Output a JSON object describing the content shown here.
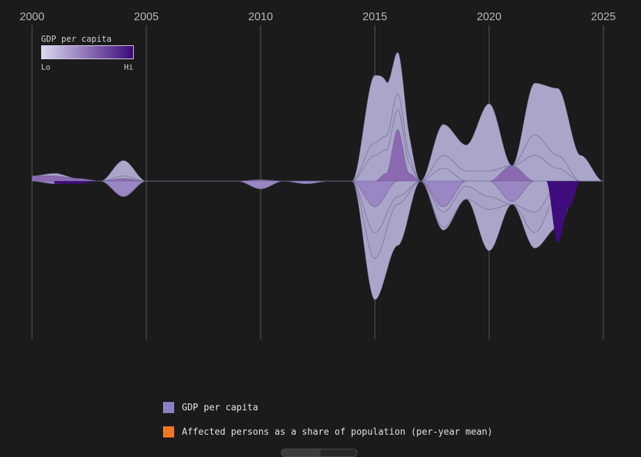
{
  "chart_data": {
    "type": "area",
    "subtype": "streamgraph",
    "x_axis": {
      "ticks": [
        "2000",
        "2005",
        "2010",
        "2015",
        "2020",
        "2025"
      ],
      "range": [
        2000,
        2025
      ],
      "gridlines": true,
      "position": "top"
    },
    "color_scale": {
      "title": "GDP per capita",
      "low_label": "Lo",
      "high_label": "Hi",
      "low_color": "#dcd9ef",
      "high_color": "#3c0a78",
      "placement": "top-left"
    },
    "legend": [
      {
        "label": "GDP per capita",
        "color": "#8a81c4"
      },
      {
        "label": "Affected persons as a share of population (per-year mean)",
        "color": "#f47520"
      }
    ],
    "legend_placement": "bottom",
    "upper_layers": [
      {
        "color": "#8b6ab2",
        "values": [
          [
            2000,
            2
          ],
          [
            2001,
            2
          ],
          [
            2002,
            1
          ],
          [
            2003,
            0
          ],
          [
            2004,
            1
          ],
          [
            2005,
            0
          ],
          [
            2006,
            0
          ],
          [
            2007,
            0
          ],
          [
            2008,
            0
          ],
          [
            2009,
            0
          ],
          [
            2010,
            0.5
          ],
          [
            2011,
            0
          ],
          [
            2012,
            0
          ],
          [
            2013,
            0
          ],
          [
            2014,
            0
          ],
          [
            2015,
            0
          ],
          [
            2015.5,
            3
          ],
          [
            2016,
            20
          ],
          [
            2016.5,
            3
          ],
          [
            2017,
            0
          ],
          [
            2018,
            0
          ],
          [
            2019,
            0
          ],
          [
            2020,
            0
          ],
          [
            2021,
            6
          ],
          [
            2022,
            0
          ],
          [
            2023,
            0
          ],
          [
            2024,
            0
          ],
          [
            2025,
            0
          ]
        ]
      },
      {
        "color": "#aaa6c9",
        "values": [
          [
            2000,
            0
          ],
          [
            2001,
            1
          ],
          [
            2002,
            0
          ],
          [
            2003,
            0
          ],
          [
            2004,
            0
          ],
          [
            2005,
            0
          ],
          [
            2006,
            0
          ],
          [
            2007,
            0
          ],
          [
            2008,
            0
          ],
          [
            2009,
            0
          ],
          [
            2010,
            0
          ],
          [
            2011,
            0
          ],
          [
            2012,
            0
          ],
          [
            2013,
            0
          ],
          [
            2014,
            0
          ],
          [
            2015,
            10
          ],
          [
            2016,
            8
          ],
          [
            2017,
            0
          ],
          [
            2018,
            5
          ],
          [
            2019,
            0
          ],
          [
            2020,
            0
          ],
          [
            2021,
            0
          ],
          [
            2022,
            10
          ],
          [
            2023,
            5
          ],
          [
            2024,
            0
          ],
          [
            2025,
            0
          ]
        ]
      },
      {
        "color": "#aaa6c9",
        "values": [
          [
            2000,
            0
          ],
          [
            2001,
            0
          ],
          [
            2002,
            0
          ],
          [
            2003,
            0
          ],
          [
            2004,
            1
          ],
          [
            2005,
            0
          ],
          [
            2006,
            0
          ],
          [
            2007,
            0
          ],
          [
            2008,
            0
          ],
          [
            2009,
            0
          ],
          [
            2010,
            0
          ],
          [
            2011,
            0
          ],
          [
            2012,
            0
          ],
          [
            2013,
            0
          ],
          [
            2014,
            0
          ],
          [
            2015,
            5
          ],
          [
            2016,
            6
          ],
          [
            2017,
            0
          ],
          [
            2018,
            5
          ],
          [
            2019,
            4
          ],
          [
            2020,
            4
          ],
          [
            2021,
            0
          ],
          [
            2022,
            8
          ],
          [
            2023,
            5
          ],
          [
            2024,
            0
          ],
          [
            2025,
            0
          ]
        ]
      },
      {
        "color": "#aaa6c9",
        "values": [
          [
            2000,
            0
          ],
          [
            2001,
            0
          ],
          [
            2002,
            0
          ],
          [
            2003,
            0
          ],
          [
            2004,
            6
          ],
          [
            2005,
            0
          ],
          [
            2006,
            0
          ],
          [
            2007,
            0
          ],
          [
            2008,
            0
          ],
          [
            2009,
            0
          ],
          [
            2010,
            0
          ],
          [
            2011,
            0
          ],
          [
            2012,
            0
          ],
          [
            2013,
            0
          ],
          [
            2014,
            0
          ],
          [
            2015,
            26
          ],
          [
            2016,
            16
          ],
          [
            2017,
            0
          ],
          [
            2018,
            12
          ],
          [
            2019,
            10
          ],
          [
            2020,
            26
          ],
          [
            2021,
            0
          ],
          [
            2022,
            20
          ],
          [
            2023,
            26
          ],
          [
            2024,
            10
          ],
          [
            2025,
            0
          ]
        ]
      }
    ],
    "lower_layers": [
      {
        "color": "#9a86c2",
        "values": [
          [
            2000,
            0
          ],
          [
            2001,
            1
          ],
          [
            2002,
            0
          ],
          [
            2003,
            0
          ],
          [
            2004,
            6
          ],
          [
            2005,
            0
          ],
          [
            2006,
            0
          ],
          [
            2007,
            0
          ],
          [
            2008,
            0
          ],
          [
            2009,
            0
          ],
          [
            2010,
            3
          ],
          [
            2011,
            0
          ],
          [
            2012,
            1
          ],
          [
            2013,
            0
          ],
          [
            2014,
            0
          ],
          [
            2015,
            10
          ],
          [
            2016,
            0
          ],
          [
            2017,
            0
          ],
          [
            2018,
            10
          ],
          [
            2019,
            0
          ],
          [
            2020,
            0
          ],
          [
            2021,
            8
          ],
          [
            2022,
            0
          ],
          [
            2023,
            0
          ],
          [
            2024,
            0
          ],
          [
            2025,
            0
          ]
        ]
      },
      {
        "color": "#aaa6c9",
        "values": [
          [
            2000,
            0
          ],
          [
            2001,
            0
          ],
          [
            2002,
            0
          ],
          [
            2003,
            0
          ],
          [
            2004,
            0
          ],
          [
            2005,
            0
          ],
          [
            2006,
            0
          ],
          [
            2007,
            0
          ],
          [
            2008,
            0
          ],
          [
            2009,
            0
          ],
          [
            2010,
            0
          ],
          [
            2011,
            0
          ],
          [
            2012,
            0
          ],
          [
            2013,
            0
          ],
          [
            2014,
            0
          ],
          [
            2015,
            10
          ],
          [
            2016,
            6
          ],
          [
            2017,
            0
          ],
          [
            2018,
            2
          ],
          [
            2019,
            2
          ],
          [
            2020,
            6
          ],
          [
            2021,
            1
          ],
          [
            2022,
            12
          ],
          [
            2023,
            2
          ],
          [
            2024,
            0
          ],
          [
            2025,
            0
          ]
        ]
      },
      {
        "color": "#a9a3c8",
        "values": [
          [
            2000,
            0
          ],
          [
            2001,
            0
          ],
          [
            2002,
            0
          ],
          [
            2003,
            0
          ],
          [
            2004,
            0
          ],
          [
            2005,
            0
          ],
          [
            2006,
            0
          ],
          [
            2007,
            0
          ],
          [
            2008,
            0
          ],
          [
            2009,
            0
          ],
          [
            2010,
            0
          ],
          [
            2011,
            0
          ],
          [
            2012,
            0
          ],
          [
            2013,
            0
          ],
          [
            2014,
            0
          ],
          [
            2015,
            10
          ],
          [
            2016,
            3
          ],
          [
            2017,
            0
          ],
          [
            2018,
            6
          ],
          [
            2019,
            5
          ],
          [
            2020,
            5
          ],
          [
            2021,
            0
          ],
          [
            2022,
            8
          ],
          [
            2023,
            4
          ],
          [
            2024,
            0
          ],
          [
            2025,
            0
          ]
        ]
      },
      {
        "color": "#aaa6c9",
        "values": [
          [
            2000,
            0
          ],
          [
            2001,
            0
          ],
          [
            2002,
            0
          ],
          [
            2003,
            0
          ],
          [
            2004,
            0
          ],
          [
            2005,
            0
          ],
          [
            2006,
            0
          ],
          [
            2007,
            0
          ],
          [
            2008,
            0
          ],
          [
            2009,
            0
          ],
          [
            2010,
            0
          ],
          [
            2011,
            0
          ],
          [
            2012,
            0
          ],
          [
            2013,
            0
          ],
          [
            2014,
            0
          ],
          [
            2015,
            16
          ],
          [
            2016,
            16
          ],
          [
            2017,
            0
          ],
          [
            2018,
            1
          ],
          [
            2019,
            0
          ],
          [
            2020,
            16
          ],
          [
            2021,
            0
          ],
          [
            2022,
            6
          ],
          [
            2023,
            12
          ],
          [
            2024,
            0
          ],
          [
            2025,
            0
          ]
        ]
      }
    ]
  },
  "highlight_shapes": [
    {
      "color": "#3f0c7c",
      "label": "",
      "values": [
        [
          2001,
          1
        ],
        [
          2002,
          1
        ],
        [
          2003,
          0
        ]
      ]
    },
    {
      "color": "#3f0c7c",
      "label": "",
      "values": [
        [
          2022.5,
          0
        ],
        [
          2023,
          24
        ],
        [
          2023.5,
          10
        ],
        [
          2024,
          0
        ]
      ]
    }
  ],
  "footer": {
    "tab_label": ""
  }
}
